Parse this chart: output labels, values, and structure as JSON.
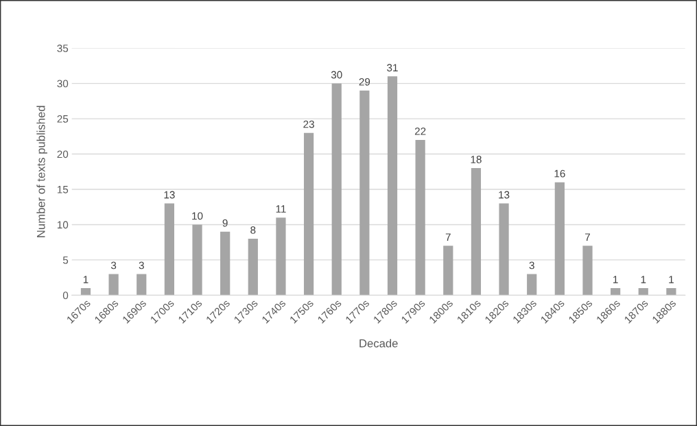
{
  "chart_data": {
    "type": "bar",
    "xlabel": "Decade",
    "ylabel": "Number of texts published",
    "categories": [
      "1670s",
      "1680s",
      "1690s",
      "1700s",
      "1710s",
      "1720s",
      "1730s",
      "1740s",
      "1750s",
      "1760s",
      "1770s",
      "1780s",
      "1790s",
      "1800s",
      "1810s",
      "1820s",
      "1830s",
      "1840s",
      "1850s",
      "1860s",
      "1870s",
      "1880s"
    ],
    "values": [
      1,
      3,
      3,
      13,
      10,
      9,
      8,
      11,
      23,
      30,
      29,
      31,
      22,
      7,
      18,
      13,
      3,
      16,
      7,
      1,
      1,
      1
    ],
    "color": "#a5a5a5",
    "ylim": [
      0,
      35
    ],
    "yticks": [
      0,
      5,
      10,
      15,
      20,
      25,
      30,
      35
    ],
    "grid": "y",
    "data_labels": true
  }
}
